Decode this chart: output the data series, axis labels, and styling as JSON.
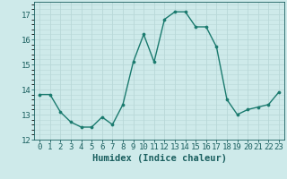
{
  "x": [
    0,
    1,
    2,
    3,
    4,
    5,
    6,
    7,
    8,
    9,
    10,
    11,
    12,
    13,
    14,
    15,
    16,
    17,
    18,
    19,
    20,
    21,
    22,
    23
  ],
  "y": [
    13.8,
    13.8,
    13.1,
    12.7,
    12.5,
    12.5,
    12.9,
    12.6,
    13.4,
    15.1,
    16.2,
    15.1,
    16.8,
    17.1,
    17.1,
    16.5,
    16.5,
    15.7,
    13.6,
    13.0,
    13.2,
    13.3,
    13.4,
    13.9
  ],
  "line_color": "#1a7a6e",
  "marker": "o",
  "marker_size": 2.2,
  "bg_color": "#ceeaea",
  "grid_color": "#b8d8d8",
  "xlabel": "Humidex (Indice chaleur)",
  "ylim": [
    12,
    17.5
  ],
  "xlim": [
    -0.5,
    23.5
  ],
  "yticks": [
    12,
    13,
    14,
    15,
    16,
    17
  ],
  "xticks": [
    0,
    1,
    2,
    3,
    4,
    5,
    6,
    7,
    8,
    9,
    10,
    11,
    12,
    13,
    14,
    15,
    16,
    17,
    18,
    19,
    20,
    21,
    22,
    23
  ],
  "tick_fontsize": 6.5,
  "xlabel_fontsize": 7.5,
  "label_color": "#1a5f5f"
}
